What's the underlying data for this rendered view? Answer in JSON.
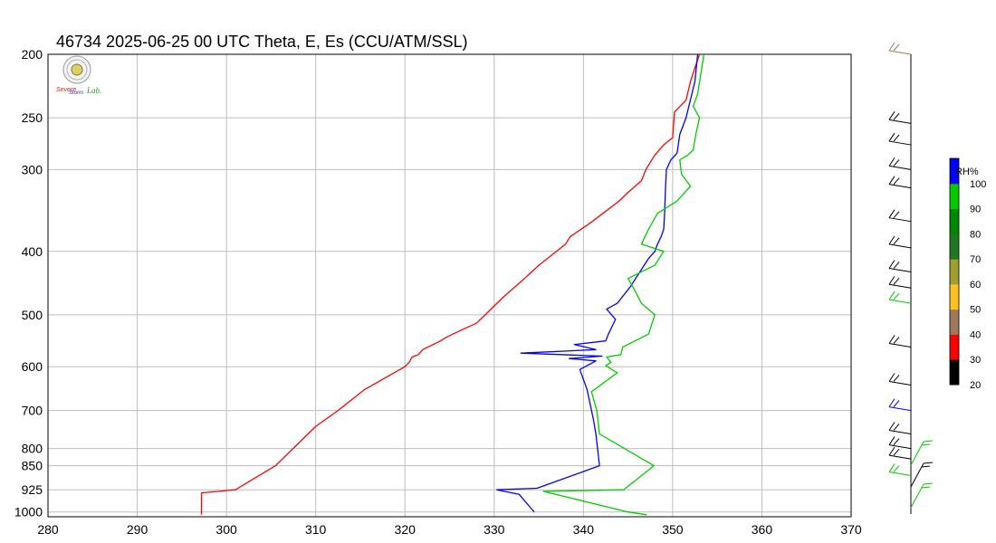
{
  "title": "46734  2025-06-25 00 UTC  Theta, E, Es (CCU/ATM/SSL)",
  "logo": {
    "text_severe": "Severe",
    "text_storm": "Storm",
    "text_lab": "Lab."
  },
  "chart_data": {
    "type": "line",
    "station": "46734",
    "y_scale": "log-pressure",
    "y_reversed": true,
    "xlim": [
      280,
      370
    ],
    "ylim": [
      1000,
      200
    ],
    "x_ticks": [
      280,
      290,
      300,
      310,
      320,
      330,
      340,
      350,
      360,
      370
    ],
    "y_ticks": [
      200,
      250,
      300,
      400,
      500,
      600,
      700,
      800,
      850,
      925,
      1000
    ],
    "grid": true,
    "series": [
      {
        "color": "#ff0000",
        "points": [
          [
            297.2,
            1010
          ],
          [
            297.2,
            1000
          ],
          [
            297.2,
            960
          ],
          [
            297.2,
            935
          ],
          [
            301,
            925
          ],
          [
            305.5,
            850
          ],
          [
            310,
            740
          ],
          [
            312.5,
            700
          ],
          [
            315.5,
            650
          ],
          [
            320,
            600
          ],
          [
            320.5,
            590
          ],
          [
            320.8,
            580
          ],
          [
            321.5,
            575
          ],
          [
            322,
            565
          ],
          [
            324,
            548
          ],
          [
            324.5,
            542
          ],
          [
            326,
            530
          ],
          [
            328,
            515
          ],
          [
            329,
            500
          ],
          [
            331,
            470
          ],
          [
            333,
            445
          ],
          [
            335,
            420
          ],
          [
            338,
            390
          ],
          [
            338.5,
            380
          ],
          [
            341,
            360
          ],
          [
            344,
            335
          ],
          [
            345,
            325
          ],
          [
            346.5,
            312
          ],
          [
            347,
            300
          ],
          [
            348,
            285
          ],
          [
            349,
            275
          ],
          [
            350,
            268
          ],
          [
            350.2,
            245
          ],
          [
            351.5,
            235
          ],
          [
            352,
            220
          ],
          [
            353,
            200
          ]
        ]
      },
      {
        "color": "#0000ff",
        "points": [
          [
            334.5,
            1000
          ],
          [
            334.2,
            990
          ],
          [
            332.8,
            940
          ],
          [
            330.3,
            925
          ],
          [
            334.8,
            920
          ],
          [
            341.8,
            850
          ],
          [
            341.4,
            760
          ],
          [
            341.1,
            720
          ],
          [
            340.4,
            650
          ],
          [
            339.6,
            606
          ],
          [
            341.4,
            588
          ],
          [
            338.4,
            583
          ],
          [
            342.1,
            578
          ],
          [
            333,
            572
          ],
          [
            341.4,
            565
          ],
          [
            339,
            555
          ],
          [
            342.5,
            548
          ],
          [
            342.8,
            535
          ],
          [
            343.6,
            508
          ],
          [
            342.6,
            490
          ],
          [
            343.8,
            480
          ],
          [
            345.3,
            452
          ],
          [
            346.8,
            420
          ],
          [
            347.3,
            410
          ],
          [
            348,
            400
          ],
          [
            348.3,
            390
          ],
          [
            348.7,
            380
          ],
          [
            349,
            370
          ],
          [
            349.1,
            350
          ],
          [
            349.2,
            320
          ],
          [
            349.3,
            300
          ],
          [
            349.8,
            290
          ],
          [
            350.5,
            283
          ],
          [
            350.8,
            265
          ],
          [
            351.5,
            250
          ],
          [
            352.5,
            220
          ],
          [
            352.8,
            200
          ]
        ]
      },
      {
        "color": "#00cc00",
        "points": [
          [
            347.1,
            1010
          ],
          [
            345,
            1000
          ],
          [
            335.5,
            930
          ],
          [
            344.5,
            925
          ],
          [
            347.9,
            850
          ],
          [
            341.8,
            760
          ],
          [
            341.5,
            700
          ],
          [
            340.9,
            655
          ],
          [
            343.8,
            613
          ],
          [
            342.5,
            598
          ],
          [
            343.1,
            591
          ],
          [
            342.6,
            580
          ],
          [
            344.2,
            575
          ],
          [
            344.4,
            560
          ],
          [
            347.3,
            535
          ],
          [
            348,
            500
          ],
          [
            346.5,
            480
          ],
          [
            345.5,
            452
          ],
          [
            345,
            440
          ],
          [
            348,
            420
          ],
          [
            349,
            400
          ],
          [
            346.5,
            390
          ],
          [
            347.3,
            370
          ],
          [
            348.3,
            350
          ],
          [
            350.5,
            335
          ],
          [
            352,
            318
          ],
          [
            351,
            305
          ],
          [
            350.8,
            290
          ],
          [
            351.7,
            285
          ],
          [
            352.3,
            280
          ],
          [
            352.6,
            265
          ],
          [
            353,
            250
          ],
          [
            352.3,
            240
          ],
          [
            352.8,
            230
          ],
          [
            353.5,
            200
          ]
        ]
      }
    ],
    "colorbar": {
      "label": "RH%",
      "ticks": [
        20,
        30,
        40,
        50,
        60,
        70,
        80,
        90,
        100
      ],
      "colors": [
        "#000000",
        "#ff0000",
        "#a0785a",
        "#ffc020",
        "#a0a030",
        "#1e7a1e",
        "#008800",
        "#00cc00",
        "#0000ff"
      ]
    }
  }
}
